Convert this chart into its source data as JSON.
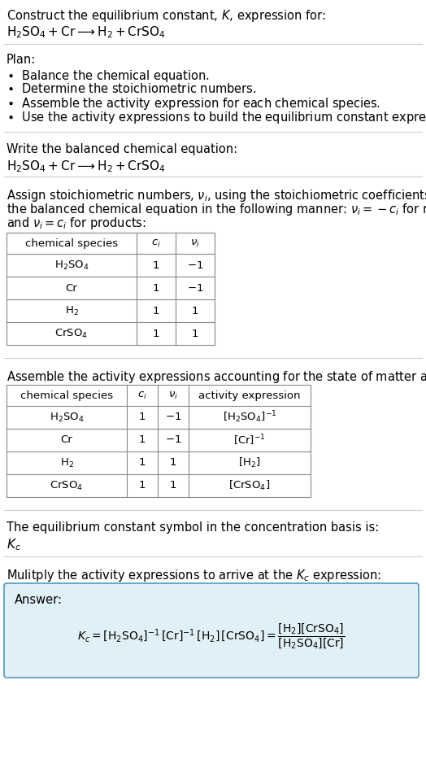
{
  "bg_color": "#ffffff",
  "text_color": "#000000",
  "separator_color": "#cccccc",
  "table_border_color": "#888888",
  "answer_box_facecolor": "#dff0f7",
  "answer_box_edgecolor": "#5599bb",
  "title_line1": "Construct the equilibrium constant, $K$, expression for:",
  "title_line2": "$\\mathrm{H_2SO_4 + Cr \\longrightarrow H_2 + CrSO_4}$",
  "plan_header": "Plan:",
  "plan_items": [
    "\\bullet  Balance the chemical equation.",
    "\\bullet  Determine the stoichiometric numbers.",
    "\\bullet  Assemble the activity expression for each chemical species.",
    "\\bullet  Use the activity expressions to build the equilibrium constant expression."
  ],
  "sec2_header": "Write the balanced chemical equation:",
  "sec2_eq": "$\\mathrm{H_2SO_4 + Cr \\longrightarrow H_2 + CrSO_4}$",
  "sec3_line1": "Assign stoichiometric numbers, $\\nu_i$, using the stoichiometric coefficients, $c_i$, from",
  "sec3_line2": "the balanced chemical equation in the following manner: $\\nu_i = -c_i$ for reactants",
  "sec3_line3": "and $\\nu_i = c_i$ for products:",
  "table1_headers": [
    "chemical species",
    "$c_i$",
    "$\\nu_i$"
  ],
  "table1_rows": [
    [
      "$\\mathrm{H_2SO_4}$",
      "1",
      "$-1$"
    ],
    [
      "Cr",
      "1",
      "$-1$"
    ],
    [
      "$\\mathrm{H_2}$",
      "1",
      "1"
    ],
    [
      "$\\mathrm{CrSO_4}$",
      "1",
      "1"
    ]
  ],
  "sec4_header": "Assemble the activity expressions accounting for the state of matter and $\\nu_i$:",
  "table2_headers": [
    "chemical species",
    "$c_i$",
    "$\\nu_i$",
    "activity expression"
  ],
  "table2_rows": [
    [
      "$\\mathrm{H_2SO_4}$",
      "1",
      "$-1$",
      "$[\\mathrm{H_2SO_4}]^{-1}$"
    ],
    [
      "Cr",
      "1",
      "$-1$",
      "$[\\mathrm{Cr}]^{-1}$"
    ],
    [
      "$\\mathrm{H_2}$",
      "1",
      "1",
      "$[\\mathrm{H_2}]$"
    ],
    [
      "$\\mathrm{CrSO_4}$",
      "1",
      "1",
      "$[\\mathrm{CrSO_4}]$"
    ]
  ],
  "sec5_header": "The equilibrium constant symbol in the concentration basis is:",
  "sec5_symbol": "$K_c$",
  "sec6_header": "Mulitply the activity expressions to arrive at the $K_c$ expression:",
  "answer_label": "Answer:",
  "answer_eq": "$K_c = [\\mathrm{H_2SO_4}]^{-1}\\,[\\mathrm{Cr}]^{-1}\\,[\\mathrm{H_2}]\\,[\\mathrm{CrSO_4}] = \\dfrac{[\\mathrm{H_2}][\\mathrm{CrSO_4}]}{[\\mathrm{H_2SO_4}][\\mathrm{Cr}]}$"
}
